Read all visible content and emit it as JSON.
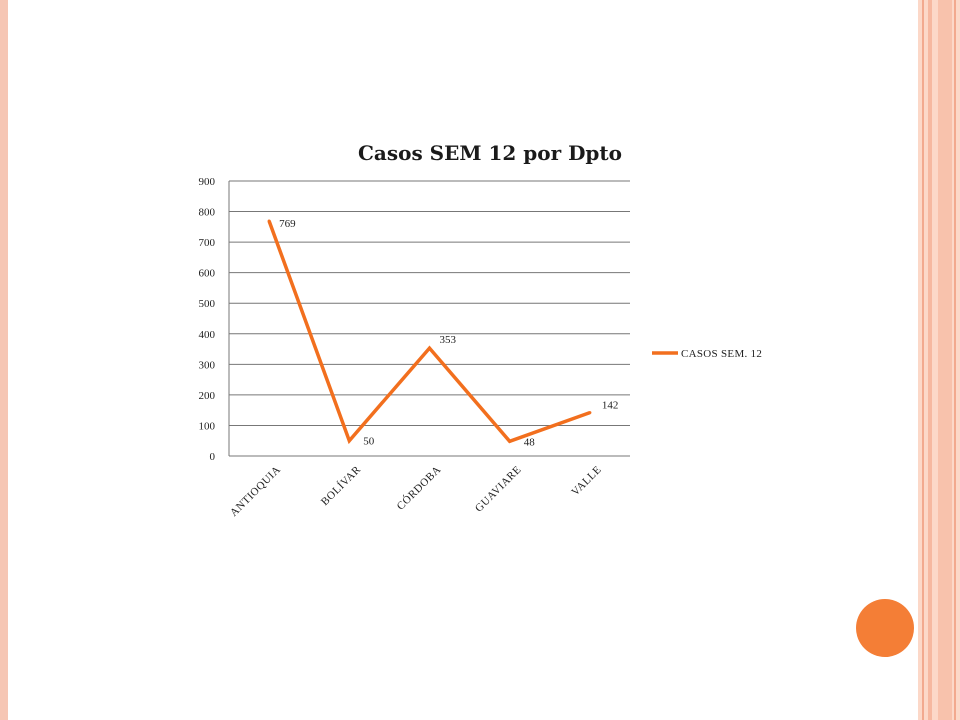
{
  "chart_data": {
    "type": "line",
    "title": "Casos SEM 12 por Dpto",
    "categories": [
      "ANTIOQUIA",
      "BOLÍVAR",
      "CÓRDOBA",
      "GUAVIARE",
      "VALLE"
    ],
    "series": [
      {
        "name": "CASOS SEM. 12",
        "values": [
          769,
          50,
          353,
          48,
          142
        ],
        "color": "#f26f1e"
      }
    ],
    "data_labels": [
      "769",
      "50",
      "353",
      "48",
      "142"
    ],
    "y_ticks": [
      "0",
      "100",
      "200",
      "300",
      "400",
      "500",
      "600",
      "700",
      "800",
      "900"
    ],
    "ylim": [
      0,
      900
    ],
    "grid": true,
    "legend_position": "right"
  },
  "decor": {
    "circle_color": "#f47e36",
    "frame_color": "#f6c6b4"
  }
}
